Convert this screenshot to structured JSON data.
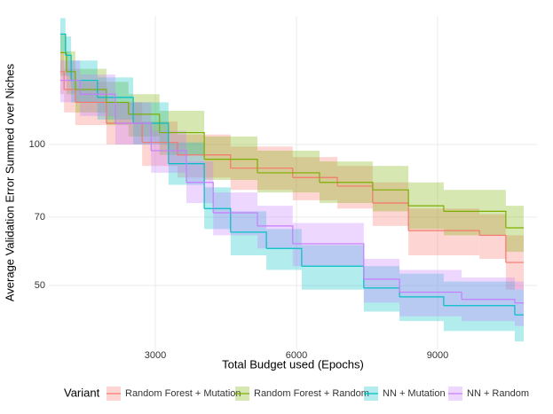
{
  "chart_data": {
    "type": "step-ribbon",
    "x_label": "Total Budget used (Epochs)",
    "y_label": "Average Validation Error Summed over Niches",
    "legend_title": "Variant",
    "legend": "bottom",
    "grid": true,
    "log_y": true,
    "xlim": [
      736,
      11113
    ],
    "ylim": [
      36.4,
      188
    ],
    "xticks": [
      3000,
      6000,
      9000
    ],
    "yticks": [
      50,
      70,
      100
    ],
    "series": [
      {
        "name": "Random Forest + Mutation",
        "color": "#F8766D",
        "x": [
          980,
          1060,
          1300,
          1960,
          2720,
          3470,
          4600,
          5920,
          6870,
          7620,
          8380,
          9890,
          10450,
          10830
        ],
        "values": [
          143,
          131,
          123,
          111,
          101,
          95,
          89,
          85,
          81.5,
          75,
          65.5,
          64,
          56,
          56
        ],
        "lower": [
          128,
          117,
          110,
          100,
          90,
          85,
          80,
          76,
          73,
          67,
          58,
          57,
          49,
          49
        ],
        "upper": [
          158,
          145,
          136,
          123,
          112,
          105,
          99,
          94,
          90,
          83,
          73,
          71,
          64,
          64
        ]
      },
      {
        "name": "Random Forest + Random",
        "color": "#7CAE00",
        "x": [
          980,
          1110,
          1300,
          1960,
          2430,
          3090,
          4040,
          5170,
          6490,
          7620,
          8380,
          9130,
          10450,
          10830
        ],
        "values": [
          157,
          143,
          131,
          123,
          116,
          106,
          93,
          87,
          83,
          80,
          74,
          72,
          66.4,
          66.4
        ],
        "lower": [
          140,
          128,
          117,
          110,
          104,
          95,
          84,
          79,
          75,
          72,
          66,
          64,
          59,
          59
        ],
        "upper": [
          172,
          158,
          145,
          136,
          128,
          118,
          104,
          97,
          92,
          90,
          83,
          80,
          74,
          74
        ]
      },
      {
        "name": "NN + Mutation",
        "color": "#00BFC4",
        "x": [
          980,
          1090,
          1210,
          1770,
          2530,
          3280,
          4040,
          4600,
          5360,
          6110,
          7430,
          8190,
          9130,
          10640,
          10830
        ],
        "values": [
          172,
          155,
          137,
          126,
          111,
          91,
          73,
          65,
          60,
          55,
          49.4,
          47.3,
          45.3,
          43.3,
          43.3
        ],
        "lower": [
          158,
          140,
          123,
          113,
          100,
          82,
          66,
          58,
          54,
          49,
          44,
          42,
          40,
          38,
          38
        ],
        "upper": [
          186,
          170,
          151,
          139,
          123,
          101,
          81,
          72,
          66,
          61,
          55,
          53,
          51,
          49,
          49
        ]
      },
      {
        "name": "NN + Random",
        "color": "#C77CFF",
        "x": [
          980,
          1400,
          2150,
          2910,
          3660,
          4230,
          5170,
          5920,
          7430,
          8190,
          9510,
          10640,
          10830
        ],
        "values": [
          137,
          128,
          111,
          97,
          83,
          71.5,
          67,
          61.4,
          51.6,
          48.4,
          46.7,
          45.9,
          45.9
        ],
        "lower": [
          123,
          115,
          100,
          87,
          75,
          64,
          60,
          55,
          46,
          43,
          42,
          41,
          41
        ],
        "upper": [
          151,
          141,
          123,
          107,
          92,
          79,
          74,
          68,
          57,
          54,
          52,
          51,
          51
        ]
      }
    ]
  }
}
